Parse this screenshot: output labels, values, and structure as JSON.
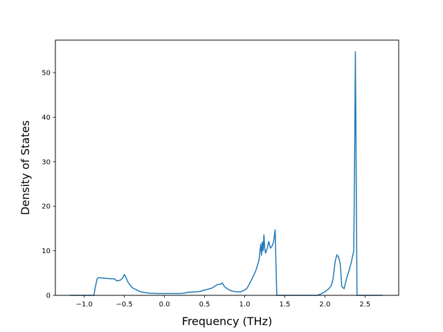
{
  "chart_data": {
    "type": "line",
    "title": "",
    "xlabel": "Frequency (THz)",
    "ylabel": "Density of States",
    "xlim": [
      -1.36,
      2.92
    ],
    "ylim": [
      0,
      57.3
    ],
    "grid": false,
    "legend": "none",
    "line_color": "#1f77b4",
    "xticks": [
      -1.0,
      -0.5,
      0.0,
      0.5,
      1.0,
      1.5,
      2.0,
      2.5
    ],
    "xtick_labels": [
      "−1.0",
      "−0.5",
      "0.0",
      "0.5",
      "1.0",
      "1.5",
      "2.0",
      "2.5"
    ],
    "yticks": [
      0,
      10,
      20,
      30,
      40,
      50
    ],
    "ytick_labels": [
      "0",
      "10",
      "20",
      "30",
      "40",
      "50"
    ],
    "series": [
      {
        "x": [
          -1.18,
          -0.88,
          -0.86,
          -0.84,
          -0.82,
          -0.78,
          -0.72,
          -0.66,
          -0.62,
          -0.6,
          -0.58,
          -0.55,
          -0.52,
          -0.5,
          -0.48,
          -0.45,
          -0.4,
          -0.3,
          -0.2,
          -0.1,
          0.0,
          0.1,
          0.2,
          0.25,
          0.3,
          0.4,
          0.45,
          0.5,
          0.55,
          0.6,
          0.63,
          0.66,
          0.7,
          0.72,
          0.75,
          0.8,
          0.85,
          0.9,
          0.95,
          1.0,
          1.03,
          1.06,
          1.1,
          1.14,
          1.18,
          1.2,
          1.21,
          1.22,
          1.23,
          1.24,
          1.25,
          1.26,
          1.28,
          1.3,
          1.32,
          1.34,
          1.36,
          1.38,
          1.39,
          1.4,
          1.41,
          1.42,
          1.5,
          1.6,
          1.7,
          1.8,
          1.9,
          1.95,
          2.0,
          2.05,
          2.08,
          2.1,
          2.12,
          2.13,
          2.15,
          2.17,
          2.19,
          2.2,
          2.21,
          2.22,
          2.24,
          2.27,
          2.3,
          2.33,
          2.36,
          2.37,
          2.38,
          2.39,
          2.4,
          2.42,
          2.5,
          2.6,
          2.72
        ],
        "y": [
          0,
          0,
          2.0,
          3.7,
          4.0,
          3.9,
          3.8,
          3.7,
          3.7,
          3.3,
          3.3,
          3.4,
          3.9,
          4.7,
          4.0,
          2.8,
          1.7,
          0.8,
          0.5,
          0.4,
          0.4,
          0.4,
          0.4,
          0.5,
          0.7,
          0.8,
          0.9,
          1.2,
          1.4,
          1.7,
          2.1,
          2.4,
          2.5,
          2.8,
          1.9,
          1.3,
          0.9,
          0.8,
          0.8,
          1.2,
          1.6,
          2.6,
          4.0,
          5.6,
          8.0,
          11.5,
          9.0,
          12.0,
          10.0,
          13.6,
          10.5,
          9.5,
          10.5,
          12.1,
          10.6,
          11.0,
          12.0,
          14.7,
          7.0,
          0.0,
          0.0,
          0.0,
          0.0,
          0.0,
          0.0,
          0.0,
          0.0,
          0.3,
          0.8,
          1.5,
          2.2,
          3.5,
          6.5,
          7.8,
          9.1,
          8.6,
          7.2,
          5.0,
          2.0,
          1.8,
          1.5,
          3.8,
          5.5,
          7.5,
          10.0,
          30.0,
          54.7,
          28.0,
          0.0,
          0.0,
          0.0,
          0.0,
          0.0
        ]
      }
    ]
  }
}
